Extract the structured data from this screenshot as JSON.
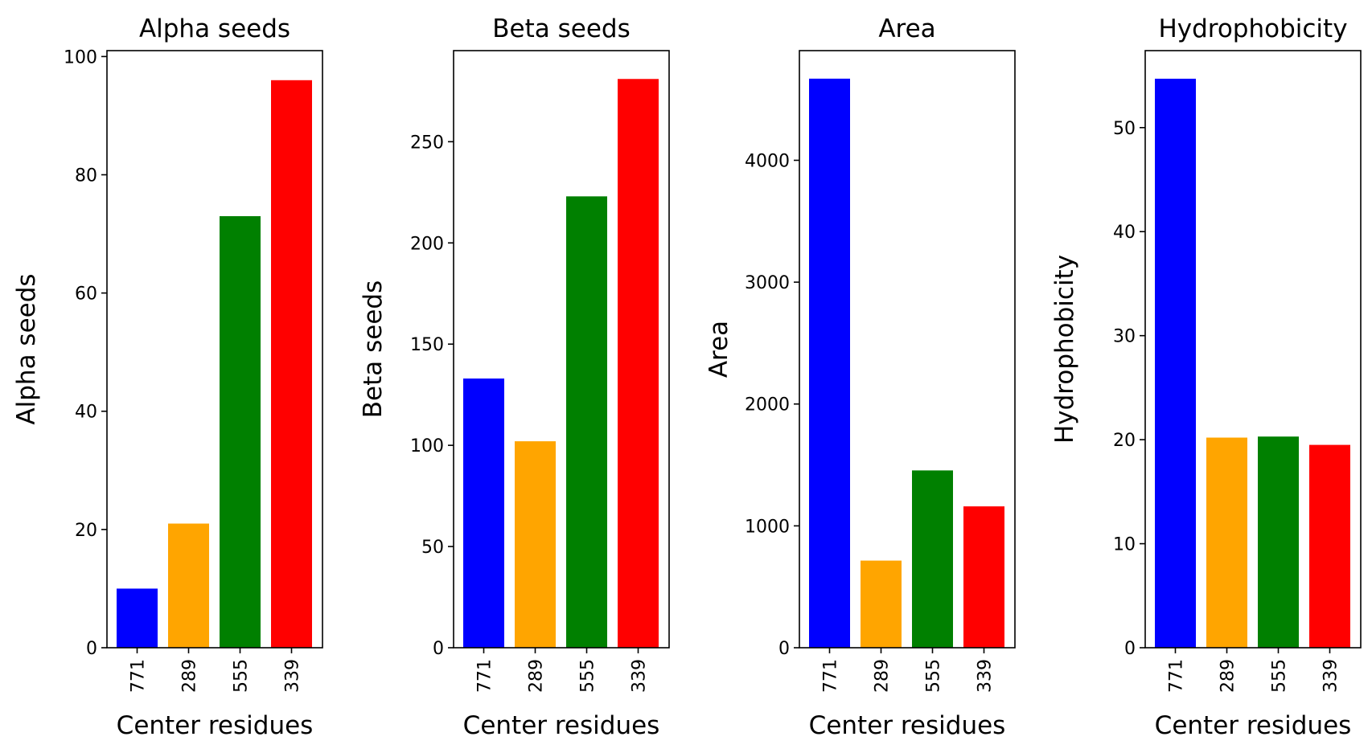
{
  "chart_data": [
    {
      "type": "bar",
      "title": "Alpha seeds",
      "xlabel": "Center residues",
      "ylabel": "Alpha seeds",
      "categories": [
        "771",
        "289",
        "555",
        "339"
      ],
      "values": [
        10,
        21,
        73,
        96
      ],
      "colors": [
        "#0000ff",
        "#ffa500",
        "#008000",
        "#ff0000"
      ],
      "ylim": [
        0,
        101
      ],
      "yticks": [
        0,
        20,
        40,
        60,
        80,
        100
      ],
      "grid": false
    },
    {
      "type": "bar",
      "title": "Beta seeds",
      "xlabel": "Center residues",
      "ylabel": "Beta seeds",
      "categories": [
        "771",
        "289",
        "555",
        "339"
      ],
      "values": [
        133,
        102,
        223,
        281
      ],
      "colors": [
        "#0000ff",
        "#ffa500",
        "#008000",
        "#ff0000"
      ],
      "ylim": [
        0,
        295
      ],
      "yticks": [
        0,
        50,
        100,
        150,
        200,
        250
      ],
      "grid": false
    },
    {
      "type": "bar",
      "title": "Area",
      "xlabel": "Center residues",
      "ylabel": "Area",
      "categories": [
        "771",
        "289",
        "555",
        "339"
      ],
      "values": [
        4670,
        715,
        1455,
        1160
      ],
      "colors": [
        "#0000ff",
        "#ffa500",
        "#008000",
        "#ff0000"
      ],
      "ylim": [
        0,
        4900
      ],
      "yticks": [
        0,
        1000,
        2000,
        3000,
        4000
      ],
      "grid": false
    },
    {
      "type": "bar",
      "title": "Hydrophobicity",
      "xlabel": "Center residues",
      "ylabel": "Hydrophobicity",
      "categories": [
        "771",
        "289",
        "555",
        "339"
      ],
      "values": [
        54.7,
        20.2,
        20.3,
        19.5
      ],
      "colors": [
        "#0000ff",
        "#ffa500",
        "#008000",
        "#ff0000"
      ],
      "ylim": [
        0,
        57.4
      ],
      "yticks": [
        0,
        10,
        20,
        30,
        40,
        50
      ],
      "grid": false
    }
  ]
}
